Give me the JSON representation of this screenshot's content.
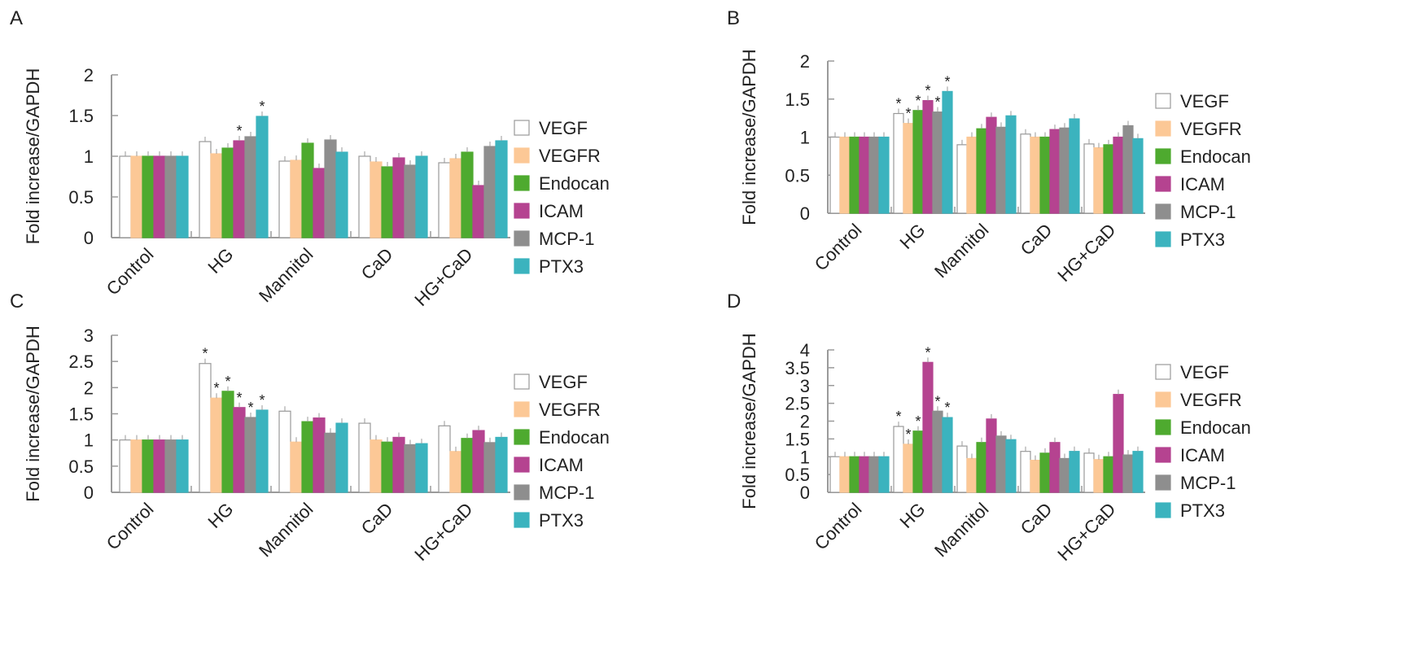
{
  "chart_data": [
    {
      "type": "bar",
      "panel": "A",
      "ylabel": "Fold increase/GAPDH",
      "ylim": [
        0,
        2
      ],
      "yticks": [
        "0",
        "0.5",
        "1",
        "1.5",
        "2"
      ],
      "categories": [
        "Control",
        "HG",
        "Mannitol",
        "CaD",
        "HG+CaD"
      ],
      "legend_position": "right",
      "series": [
        {
          "name": "VEGF",
          "color": "#FFFFFF",
          "values": [
            1,
            1.18,
            0.94,
            1.0,
            0.92
          ],
          "significant": [
            false,
            false,
            false,
            false,
            false
          ]
        },
        {
          "name": "VEGFR",
          "color": "#FCC896",
          "values": [
            1,
            1.03,
            0.95,
            0.93,
            0.97
          ],
          "significant": [
            false,
            false,
            false,
            false,
            false
          ]
        },
        {
          "name": "Endocan",
          "color": "#4EAA2F",
          "values": [
            1,
            1.1,
            1.16,
            0.87,
            1.05
          ],
          "significant": [
            false,
            false,
            false,
            false,
            false
          ]
        },
        {
          "name": "ICAM",
          "color": "#B54390",
          "values": [
            1,
            1.19,
            0.85,
            0.98,
            0.64
          ],
          "significant": [
            false,
            true,
            false,
            false,
            false
          ]
        },
        {
          "name": "MCP-1",
          "color": "#8E8E8E",
          "values": [
            1,
            1.24,
            1.2,
            0.89,
            1.12
          ],
          "significant": [
            false,
            false,
            false,
            false,
            false
          ]
        },
        {
          "name": "PTX3",
          "color": "#3BB3BE",
          "values": [
            1,
            1.49,
            1.05,
            1.0,
            1.19
          ],
          "significant": [
            false,
            true,
            false,
            false,
            false
          ]
        }
      ]
    },
    {
      "type": "bar",
      "panel": "B",
      "ylabel": "Fold increase/GAPDH",
      "ylim": [
        0,
        2
      ],
      "yticks": [
        "0",
        "0.5",
        "1",
        "1.5",
        "2"
      ],
      "categories": [
        "Control",
        "HG",
        "Mannitol",
        "CaD",
        "HG+CaD"
      ],
      "legend_position": "right",
      "series": [
        {
          "name": "VEGF",
          "color": "#FFFFFF",
          "values": [
            1,
            1.31,
            0.9,
            1.04,
            0.91
          ],
          "significant": [
            false,
            true,
            false,
            false,
            false
          ]
        },
        {
          "name": "VEGFR",
          "color": "#FCC896",
          "values": [
            1,
            1.18,
            1.0,
            1.0,
            0.86
          ],
          "significant": [
            false,
            true,
            false,
            false,
            false
          ]
        },
        {
          "name": "Endocan",
          "color": "#4EAA2F",
          "values": [
            1,
            1.35,
            1.11,
            1.0,
            0.9
          ],
          "significant": [
            false,
            true,
            false,
            false,
            false
          ]
        },
        {
          "name": "ICAM",
          "color": "#B54390",
          "values": [
            1,
            1.48,
            1.26,
            1.1,
            1.0
          ],
          "significant": [
            false,
            true,
            false,
            false,
            false
          ]
        },
        {
          "name": "MCP-1",
          "color": "#8E8E8E",
          "values": [
            1,
            1.33,
            1.13,
            1.12,
            1.15
          ],
          "significant": [
            false,
            true,
            false,
            false,
            false
          ]
        },
        {
          "name": "PTX3",
          "color": "#3BB3BE",
          "values": [
            1,
            1.6,
            1.28,
            1.24,
            0.98
          ],
          "significant": [
            false,
            true,
            false,
            false,
            false
          ]
        }
      ]
    },
    {
      "type": "bar",
      "panel": "C",
      "ylabel": "Fold increase/GAPDH",
      "ylim": [
        0,
        3
      ],
      "yticks": [
        "0",
        "0.5",
        "1",
        "1.5",
        "2",
        "2.5",
        "3"
      ],
      "categories": [
        "Control",
        "HG",
        "Mannitol",
        "CaD",
        "HG+CaD"
      ],
      "legend_position": "right",
      "series": [
        {
          "name": "VEGF",
          "color": "#FFFFFF",
          "values": [
            1,
            2.46,
            1.55,
            1.32,
            1.27
          ],
          "significant": [
            false,
            true,
            false,
            false,
            false
          ]
        },
        {
          "name": "VEGFR",
          "color": "#FCC896",
          "values": [
            1,
            1.8,
            0.96,
            1.0,
            0.78
          ],
          "significant": [
            false,
            true,
            false,
            false,
            false
          ]
        },
        {
          "name": "Endocan",
          "color": "#4EAA2F",
          "values": [
            1,
            1.93,
            1.35,
            0.96,
            1.03
          ],
          "significant": [
            false,
            true,
            false,
            false,
            false
          ]
        },
        {
          "name": "ICAM",
          "color": "#B54390",
          "values": [
            1,
            1.62,
            1.42,
            1.05,
            1.18
          ],
          "significant": [
            false,
            true,
            false,
            false,
            false
          ]
        },
        {
          "name": "MCP-1",
          "color": "#8E8E8E",
          "values": [
            1,
            1.43,
            1.13,
            0.91,
            0.95
          ],
          "significant": [
            false,
            true,
            false,
            false,
            false
          ]
        },
        {
          "name": "PTX3",
          "color": "#3BB3BE",
          "values": [
            1,
            1.57,
            1.32,
            0.93,
            1.05
          ],
          "significant": [
            false,
            true,
            false,
            false,
            false
          ]
        }
      ]
    },
    {
      "type": "bar",
      "panel": "D",
      "ylabel": "Fold increase/GAPDH",
      "ylim": [
        0,
        4
      ],
      "yticks": [
        "0",
        "0.5",
        "1",
        "1.5",
        "2",
        "2.5",
        "3",
        "3.5",
        "4"
      ],
      "categories": [
        "Control",
        "HG",
        "Mannitol",
        "CaD",
        "HG+CaD"
      ],
      "legend_position": "right",
      "series": [
        {
          "name": "VEGF",
          "color": "#FFFFFF",
          "values": [
            1,
            1.85,
            1.3,
            1.15,
            1.1
          ],
          "significant": [
            false,
            true,
            false,
            false,
            false
          ]
        },
        {
          "name": "VEGFR",
          "color": "#FCC896",
          "values": [
            1,
            1.35,
            0.95,
            0.9,
            0.92
          ],
          "significant": [
            false,
            true,
            false,
            false,
            false
          ]
        },
        {
          "name": "Endocan",
          "color": "#4EAA2F",
          "values": [
            1,
            1.72,
            1.4,
            1.1,
            1.0
          ],
          "significant": [
            false,
            true,
            false,
            false,
            false
          ]
        },
        {
          "name": "ICAM",
          "color": "#B54390",
          "values": [
            1,
            3.65,
            2.06,
            1.4,
            2.75
          ],
          "significant": [
            false,
            true,
            false,
            false,
            false
          ]
        },
        {
          "name": "MCP-1",
          "color": "#8E8E8E",
          "values": [
            1,
            2.28,
            1.58,
            0.95,
            1.05
          ],
          "significant": [
            false,
            true,
            false,
            false,
            false
          ]
        },
        {
          "name": "PTX3",
          "color": "#3BB3BE",
          "values": [
            1,
            2.1,
            1.48,
            1.15,
            1.15
          ],
          "significant": [
            false,
            true,
            false,
            false,
            false
          ]
        }
      ]
    }
  ],
  "significance_marker": "*"
}
